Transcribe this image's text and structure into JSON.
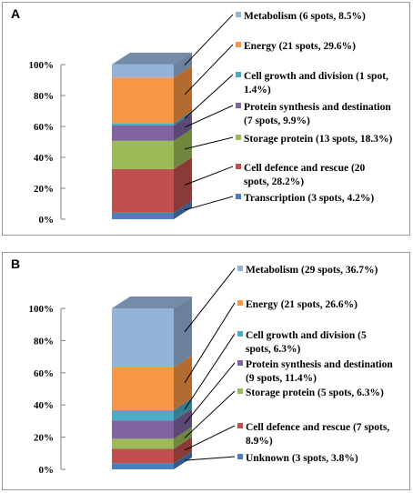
{
  "chart_data": [
    {
      "type": "bar",
      "stacked": true,
      "panel_label": "A",
      "yticks": [
        "0%",
        "20%",
        "40%",
        "60%",
        "80%",
        "100%"
      ],
      "ylim": [
        0,
        100
      ],
      "segments": [
        {
          "name": "Transcription",
          "label": "Transcription (3 spots, 4.2%)",
          "value": 4.2,
          "color": "#4a7ec0"
        },
        {
          "name": "Cell defence and rescue",
          "label": "Cell defence and rescue (20 spots, 28.2%)",
          "value": 28.2,
          "color": "#c0504d"
        },
        {
          "name": "Storage protein",
          "label": "Storage protein (13 spots, 18.3%)",
          "value": 18.3,
          "color": "#9bbb59"
        },
        {
          "name": "Protein synthesis and destination",
          "label": "Protein synthesis and destination (7 spots, 9.9%)",
          "value": 9.9,
          "color": "#8064a2"
        },
        {
          "name": "Cell growth and division",
          "label": "Cell growth and division (1 spot, 1.4%)",
          "value": 1.4,
          "color": "#4bacc6"
        },
        {
          "name": "Energy",
          "label": "Energy (21 spots, 29.6%)",
          "value": 29.6,
          "color": "#f79646"
        },
        {
          "name": "Metabolism",
          "label": "Metabolism (6 spots, 8.5%)",
          "value": 8.5,
          "color": "#95b3d7"
        }
      ]
    },
    {
      "type": "bar",
      "stacked": true,
      "panel_label": "B",
      "yticks": [
        "0%",
        "20%",
        "40%",
        "60%",
        "80%",
        "100%"
      ],
      "ylim": [
        0,
        100
      ],
      "segments": [
        {
          "name": "Unknown",
          "label": "Unknown (3 spots, 3.8%)",
          "value": 3.8,
          "color": "#4a7ec0"
        },
        {
          "name": "Cell defence and rescue",
          "label": "Cell defence and rescue (7 spots, 8.9%)",
          "value": 8.9,
          "color": "#c0504d"
        },
        {
          "name": "Storage protein",
          "label": "Storage protein (5 spots, 6.3%)",
          "value": 6.3,
          "color": "#9bbb59"
        },
        {
          "name": "Protein synthesis and destination",
          "label": "Protein synthesis and destination (9 spots, 11.4%)",
          "value": 11.4,
          "color": "#8064a2"
        },
        {
          "name": "Cell growth and division",
          "label": "Cell growth and division (5 spots, 6.3%)",
          "value": 6.3,
          "color": "#4bacc6"
        },
        {
          "name": "Energy",
          "label": "Energy (21 spots, 26.6%)",
          "value": 26.6,
          "color": "#f79646"
        },
        {
          "name": "Metabolism",
          "label": "Metabolism (29 spots, 36.7%)",
          "value": 36.7,
          "color": "#95b3d7"
        }
      ]
    }
  ]
}
